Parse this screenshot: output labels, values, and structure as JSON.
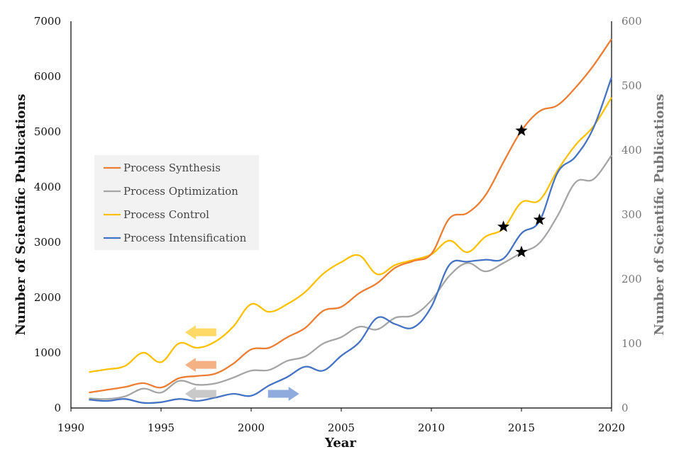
{
  "chart_data": {
    "type": "line",
    "xlabel": "Year",
    "ylabel_left": "Number of Scientific Publications",
    "ylabel_right": "Number of Scientific Publications",
    "xlim": [
      1990,
      2020
    ],
    "ylim_left": [
      0,
      7000
    ],
    "ylim_right": [
      0,
      600
    ],
    "x_ticks": [
      "1990",
      "1995",
      "2000",
      "2005",
      "2010",
      "2015",
      "2020"
    ],
    "y_ticks_left": [
      "0",
      "1000",
      "2000",
      "3000",
      "4000",
      "5000",
      "6000",
      "7000"
    ],
    "y_ticks_right": [
      "0",
      "100",
      "200",
      "300",
      "400",
      "500",
      "600"
    ],
    "legend_position": "center-left",
    "x": [
      1991,
      1992,
      1993,
      1994,
      1995,
      1996,
      1997,
      1998,
      1999,
      2000,
      2001,
      2002,
      2003,
      2004,
      2005,
      2006,
      2007,
      2008,
      2009,
      2010,
      2011,
      2012,
      2013,
      2014,
      2015,
      2016,
      2017,
      2018,
      2019,
      2020
    ],
    "series": [
      {
        "name": "Process Synthesis",
        "axis": "left",
        "color": "#ED7D31",
        "values": [
          280,
          330,
          380,
          450,
          370,
          540,
          580,
          620,
          800,
          1060,
          1090,
          1280,
          1450,
          1760,
          1830,
          2080,
          2260,
          2540,
          2660,
          2790,
          3430,
          3530,
          3850,
          4450,
          5020,
          5370,
          5480,
          5800,
          6200,
          6680
        ],
        "markers": [
          {
            "x": 2015,
            "y": 5020
          }
        ]
      },
      {
        "name": "Process Optimization",
        "axis": "right",
        "color": "#A5A5A5",
        "values": [
          15,
          14,
          18,
          30,
          24,
          42,
          36,
          38,
          47,
          58,
          59,
          73,
          80,
          100,
          110,
          126,
          122,
          140,
          144,
          167,
          205,
          225,
          212,
          225,
          241,
          256,
          298,
          350,
          355,
          392
        ],
        "markers": [
          {
            "x": 2015,
            "y": 242
          }
        ]
      },
      {
        "name": "Process Control",
        "axis": "left",
        "color": "#FFC000",
        "values": [
          650,
          700,
          760,
          1000,
          830,
          1170,
          1090,
          1200,
          1470,
          1880,
          1740,
          1880,
          2100,
          2430,
          2640,
          2760,
          2420,
          2590,
          2680,
          2780,
          3030,
          2820,
          3100,
          3250,
          3720,
          3760,
          4300,
          4760,
          5100,
          5620
        ],
        "markers": [
          {
            "x": 2014,
            "y": 3280
          }
        ]
      },
      {
        "name": "Process Intensification",
        "axis": "right",
        "color": "#4472C4",
        "values": [
          13,
          11,
          14,
          8,
          9,
          14,
          11,
          16,
          22,
          19,
          35,
          48,
          64,
          58,
          81,
          102,
          140,
          130,
          125,
          157,
          222,
          227,
          230,
          232,
          271,
          290,
          365,
          390,
          435,
          513
        ],
        "markers": [
          {
            "x": 2016,
            "y": 292
          }
        ]
      }
    ],
    "axis_arrows": [
      {
        "series": "Process Control",
        "direction": "left",
        "x": 1997.2,
        "y": 1370,
        "axis": "left"
      },
      {
        "series": "Process Synthesis",
        "direction": "left",
        "x": 1997.2,
        "y": 780,
        "axis": "left"
      },
      {
        "series": "Process Optimization",
        "direction": "left",
        "x": 1997.2,
        "y": 22,
        "axis": "right"
      },
      {
        "series": "Process Intensification",
        "direction": "right",
        "x": 2001.8,
        "y": 22,
        "axis": "right"
      }
    ]
  }
}
